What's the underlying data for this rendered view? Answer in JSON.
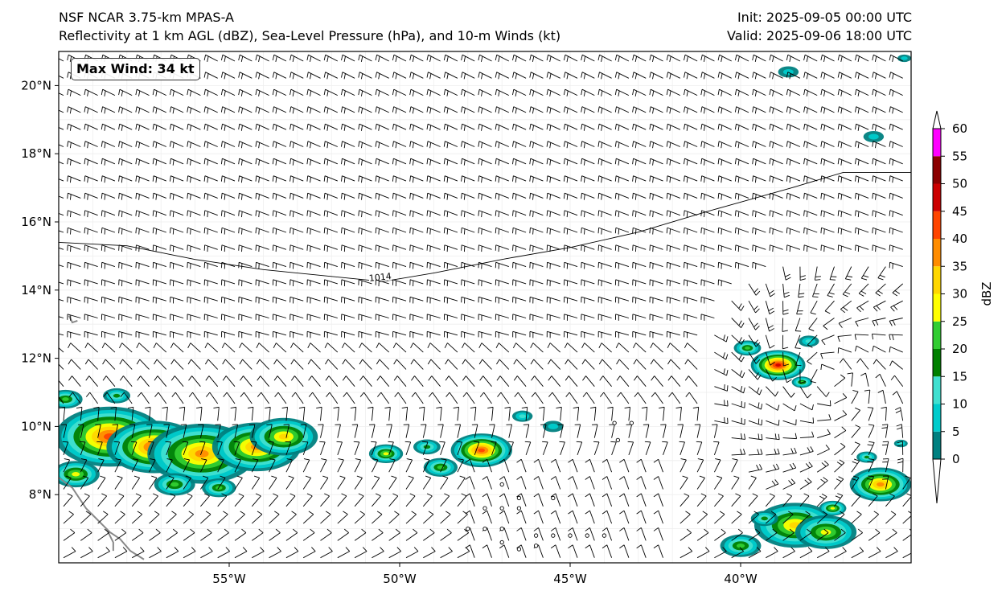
{
  "header": {
    "model_title": "NSF NCAR 3.75-km MPAS-A",
    "fields_title": "Reflectivity at 1 km AGL (dBZ), Sea-Level Pressure (hPa), and 10-m Winds (kt)",
    "init_time": "Init: 2025-09-05 00:00 UTC",
    "valid_time": "Valid: 2025-09-06 18:00 UTC"
  },
  "annotation": {
    "max_wind": "Max Wind: 34 kt"
  },
  "map": {
    "lon_range": [
      -60.0,
      -35.0
    ],
    "lat_range": [
      6.0,
      21.0
    ],
    "lon_ticks": [
      {
        "value": -55,
        "label": "55°W"
      },
      {
        "value": -50,
        "label": "50°W"
      },
      {
        "value": -45,
        "label": "45°W"
      },
      {
        "value": -40,
        "label": "40°W"
      }
    ],
    "lat_ticks": [
      {
        "value": 8,
        "label": "8°N"
      },
      {
        "value": 10,
        "label": "10°N"
      },
      {
        "value": 12,
        "label": "12°N"
      },
      {
        "value": 14,
        "label": "14°N"
      },
      {
        "value": 16,
        "label": "16°N"
      },
      {
        "value": 18,
        "label": "18°N"
      },
      {
        "value": 20,
        "label": "20°N"
      }
    ],
    "isobar": {
      "label": "1014",
      "points": [
        [
          -60.0,
          15.4
        ],
        [
          -58.0,
          15.3
        ],
        [
          -56.0,
          14.9
        ],
        [
          -54.0,
          14.6
        ],
        [
          -52.0,
          14.4
        ],
        [
          -50.5,
          14.25
        ],
        [
          -49.0,
          14.5
        ],
        [
          -47.0,
          14.9
        ],
        [
          -45.0,
          15.25
        ],
        [
          -43.0,
          15.7
        ],
        [
          -41.0,
          16.3
        ],
        [
          -38.5,
          17.0
        ],
        [
          -37.0,
          17.45
        ],
        [
          -35.0,
          17.45
        ]
      ],
      "label_at": [
        -50.9,
        14.35
      ]
    },
    "coastlines": [
      [
        [
          -60.0,
          8.5
        ],
        [
          -59.6,
          8.2
        ],
        [
          -59.2,
          7.6
        ],
        [
          -58.8,
          7.2
        ],
        [
          -58.5,
          6.9
        ],
        [
          -58.2,
          6.7
        ],
        [
          -57.9,
          6.35
        ],
        [
          -57.5,
          6.1
        ]
      ],
      [
        [
          -58.6,
          7.0
        ],
        [
          -58.4,
          6.6
        ],
        [
          -58.4,
          6.35
        ]
      ],
      [
        [
          -59.7,
          13.25
        ],
        [
          -59.6,
          13.05
        ],
        [
          -59.45,
          13.1
        ]
      ]
    ],
    "reflectivity_cells": [
      {
        "lon": -58.5,
        "lat": 9.7,
        "dbz": 45,
        "r": 1.6
      },
      {
        "lon": -57.2,
        "lat": 9.4,
        "dbz": 48,
        "r": 1.4
      },
      {
        "lon": -55.8,
        "lat": 9.2,
        "dbz": 42,
        "r": 1.6
      },
      {
        "lon": -54.2,
        "lat": 9.4,
        "dbz": 40,
        "r": 1.3
      },
      {
        "lon": -53.4,
        "lat": 9.7,
        "dbz": 38,
        "r": 1.0
      },
      {
        "lon": -59.5,
        "lat": 8.6,
        "dbz": 30,
        "r": 0.7
      },
      {
        "lon": -56.6,
        "lat": 8.3,
        "dbz": 28,
        "r": 0.6
      },
      {
        "lon": -55.3,
        "lat": 8.2,
        "dbz": 25,
        "r": 0.5
      },
      {
        "lon": -59.8,
        "lat": 10.8,
        "dbz": 25,
        "r": 0.5
      },
      {
        "lon": -58.3,
        "lat": 10.9,
        "dbz": 22,
        "r": 0.4
      },
      {
        "lon": -50.4,
        "lat": 9.2,
        "dbz": 30,
        "r": 0.5
      },
      {
        "lon": -49.2,
        "lat": 9.4,
        "dbz": 22,
        "r": 0.4
      },
      {
        "lon": -48.8,
        "lat": 8.8,
        "dbz": 28,
        "r": 0.5
      },
      {
        "lon": -47.6,
        "lat": 9.3,
        "dbz": 45,
        "r": 0.9
      },
      {
        "lon": -46.4,
        "lat": 10.3,
        "dbz": 15,
        "r": 0.3
      },
      {
        "lon": -45.5,
        "lat": 10.0,
        "dbz": 12,
        "r": 0.3
      },
      {
        "lon": -38.9,
        "lat": 11.8,
        "dbz": 50,
        "r": 0.8
      },
      {
        "lon": -39.8,
        "lat": 12.3,
        "dbz": 25,
        "r": 0.4
      },
      {
        "lon": -38.2,
        "lat": 11.3,
        "dbz": 25,
        "r": 0.3
      },
      {
        "lon": -38.0,
        "lat": 12.5,
        "dbz": 15,
        "r": 0.3
      },
      {
        "lon": -38.4,
        "lat": 7.1,
        "dbz": 38,
        "r": 1.2
      },
      {
        "lon": -37.5,
        "lat": 6.9,
        "dbz": 32,
        "r": 0.9
      },
      {
        "lon": -35.9,
        "lat": 8.3,
        "dbz": 42,
        "r": 0.9
      },
      {
        "lon": -40.0,
        "lat": 6.5,
        "dbz": 25,
        "r": 0.6
      },
      {
        "lon": -38.6,
        "lat": 20.4,
        "dbz": 12,
        "r": 0.3
      },
      {
        "lon": -36.1,
        "lat": 18.5,
        "dbz": 12,
        "r": 0.3
      },
      {
        "lon": -35.2,
        "lat": 20.8,
        "dbz": 12,
        "r": 0.2
      },
      {
        "lon": -36.3,
        "lat": 9.1,
        "dbz": 22,
        "r": 0.3
      },
      {
        "lon": -35.3,
        "lat": 9.5,
        "dbz": 15,
        "r": 0.2
      },
      {
        "lon": -39.3,
        "lat": 7.3,
        "dbz": 20,
        "r": 0.4
      },
      {
        "lon": -37.3,
        "lat": 7.6,
        "dbz": 30,
        "r": 0.4
      }
    ],
    "calm_points": [
      [
        -43.7,
        10.1
      ],
      [
        -43.2,
        10.1
      ],
      [
        -43.6,
        9.6
      ],
      [
        -47.0,
        8.3
      ],
      [
        -45.5,
        7.9
      ],
      [
        -46.5,
        7.9
      ],
      [
        -47.5,
        7.6
      ],
      [
        -47.0,
        7.6
      ],
      [
        -46.5,
        7.6
      ],
      [
        -48.0,
        7.0
      ],
      [
        -47.5,
        7.0
      ],
      [
        -47.0,
        7.0
      ],
      [
        -46.0,
        6.8
      ],
      [
        -45.5,
        6.8
      ],
      [
        -45.0,
        6.8
      ],
      [
        -44.5,
        6.8
      ],
      [
        -44.0,
        6.8
      ],
      [
        -47.0,
        6.6
      ],
      [
        -46.5,
        6.4
      ],
      [
        -46.0,
        6.5
      ]
    ]
  },
  "colorbar": {
    "label": "dBZ",
    "levels": [
      0,
      5,
      10,
      15,
      20,
      25,
      30,
      35,
      40,
      45,
      50,
      55,
      60
    ],
    "colors": [
      "#008080",
      "#00cccc",
      "#40e0d0",
      "#008000",
      "#32cd32",
      "#ffff00",
      "#ffd700",
      "#ff8c00",
      "#ff4500",
      "#cc0000",
      "#8b0000",
      "#ff00ff",
      "#ffe4e1"
    ],
    "tick_labels": [
      "0",
      "5",
      "10",
      "15",
      "20",
      "25",
      "30",
      "35",
      "40",
      "45",
      "50",
      "55",
      "60"
    ]
  }
}
